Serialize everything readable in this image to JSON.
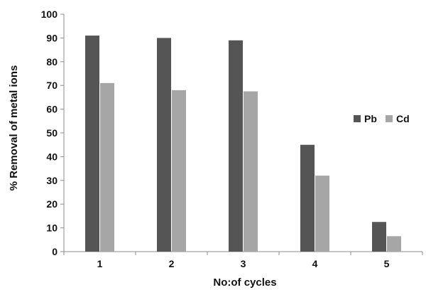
{
  "chart_data": {
    "type": "bar",
    "title": "",
    "xlabel": "No:of cycles",
    "ylabel": "% Removal of metal ions",
    "categories": [
      "1",
      "2",
      "3",
      "4",
      "5"
    ],
    "series": [
      {
        "name": "Pb",
        "color": "#555555",
        "values": [
          91,
          90,
          89,
          45,
          12.5
        ]
      },
      {
        "name": "Cd",
        "color": "#a6a6a6",
        "values": [
          71,
          68,
          67.5,
          32,
          6.5
        ]
      }
    ],
    "ylim": [
      0,
      100
    ],
    "yticks": [
      0,
      10,
      20,
      30,
      40,
      50,
      60,
      70,
      80,
      90,
      100
    ],
    "grid": false,
    "legend_position": "right"
  }
}
